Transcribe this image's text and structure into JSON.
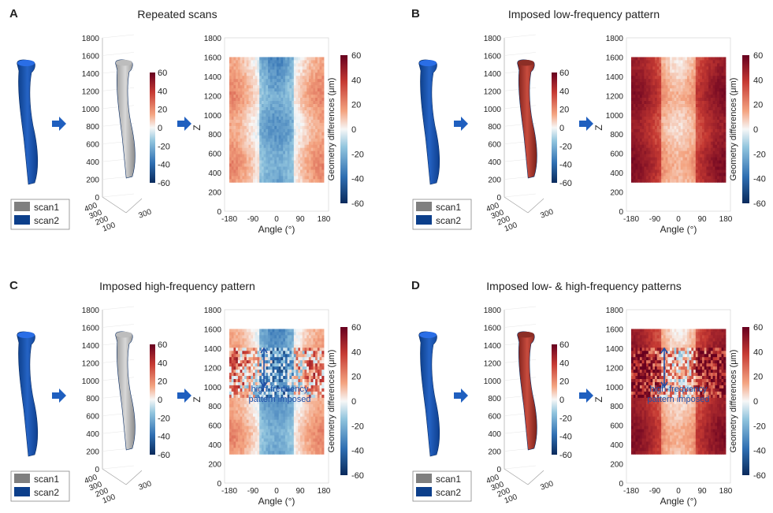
{
  "panels": [
    {
      "letter": "A",
      "title": "Repeated scans",
      "variant": "A"
    },
    {
      "letter": "B",
      "title": "Imposed low-frequency pattern",
      "variant": "B"
    },
    {
      "letter": "C",
      "title": "Imposed high-frequency pattern",
      "variant": "C"
    },
    {
      "letter": "D",
      "title": "Imposed low- & high-frequency patterns",
      "variant": "D"
    }
  ],
  "legend": {
    "scan1": "scan1",
    "scan2": "scan2",
    "scan1_color": "#7f7f7f",
    "scan2_color": "#0c3f8b"
  },
  "axes3d": {
    "z_ticks": [
      "1800",
      "1600",
      "1400",
      "1200",
      "1000",
      "800",
      "600",
      "400",
      "200",
      "0"
    ],
    "base_ticks_left": [
      "400",
      "300",
      "200",
      "100"
    ],
    "base_ticks_right": [
      "300"
    ]
  },
  "colorbar_small": {
    "ticks": [
      "60",
      "40",
      "20",
      "0",
      "-20",
      "-40",
      "-60"
    ]
  },
  "heatmap": {
    "ylabel": "Z",
    "xlabel": "Angle (°)",
    "y_ticks": [
      "1800",
      "1600",
      "1400",
      "1200",
      "1000",
      "800",
      "600",
      "400",
      "200",
      "0"
    ],
    "x_ticks": [
      "-180",
      "-90",
      "0",
      "90",
      "180"
    ]
  },
  "colorbar_big": {
    "label": "Geometry differences (μm)",
    "ticks": [
      "60",
      "40",
      "20",
      "0",
      "-20",
      "-40",
      "-60"
    ]
  },
  "annotation": {
    "line1": "high-frequency",
    "line2": "pattern imposed"
  },
  "colors": {
    "arrow": "#1f5fbf",
    "annotation": "#1f4fa8",
    "bone_blue": "#1c55b0",
    "bone_cap": "#2a6ee6"
  }
}
